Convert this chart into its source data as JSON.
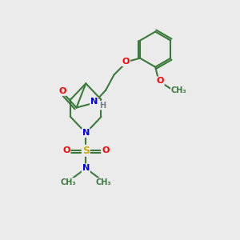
{
  "background_color": "#ebebeb",
  "bond_color": "#3a7a3a",
  "bond_width": 1.5,
  "atom_colors": {
    "O": "#ff0000",
    "N": "#0000ee",
    "S": "#ccaa00",
    "C": "#3a7a3a",
    "H": "#708090"
  },
  "fig_width": 3.0,
  "fig_height": 3.0,
  "dpi": 100,
  "xlim": [
    0,
    10
  ],
  "ylim": [
    0,
    10
  ]
}
